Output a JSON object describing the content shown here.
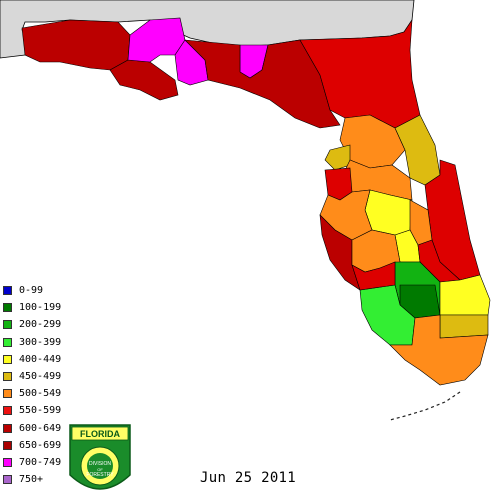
{
  "date_label": "Jun 25 2011",
  "legend": [
    {
      "label": "0-99",
      "color": "#0000cc"
    },
    {
      "label": "100-199",
      "color": "#007a00"
    },
    {
      "label": "200-299",
      "color": "#12b312"
    },
    {
      "label": "300-399",
      "color": "#33ee33"
    },
    {
      "label": "400-449",
      "color": "#ffff22"
    },
    {
      "label": "450-499",
      "color": "#ddbb11"
    },
    {
      "label": "500-549",
      "color": "#ff8c1a"
    },
    {
      "label": "550-599",
      "color": "#ee1111"
    },
    {
      "label": "600-649",
      "color": "#bb0000"
    },
    {
      "label": "650-699",
      "color": "#aa0000"
    },
    {
      "label": "700-749",
      "color": "#ff00ff"
    },
    {
      "label": "750+",
      "color": "#aa66cc"
    }
  ],
  "seal": {
    "top_text": "FLORIDA",
    "center_text": "DIVISION OF FORESTRY",
    "ring_text": "DEPARTMENT OF AGRICULTURE CONSUMER SERVICES",
    "color": "#1a8c2a"
  },
  "map_colors": {
    "neighbor_states": "#d8d8d8",
    "county_border": "#000000"
  }
}
